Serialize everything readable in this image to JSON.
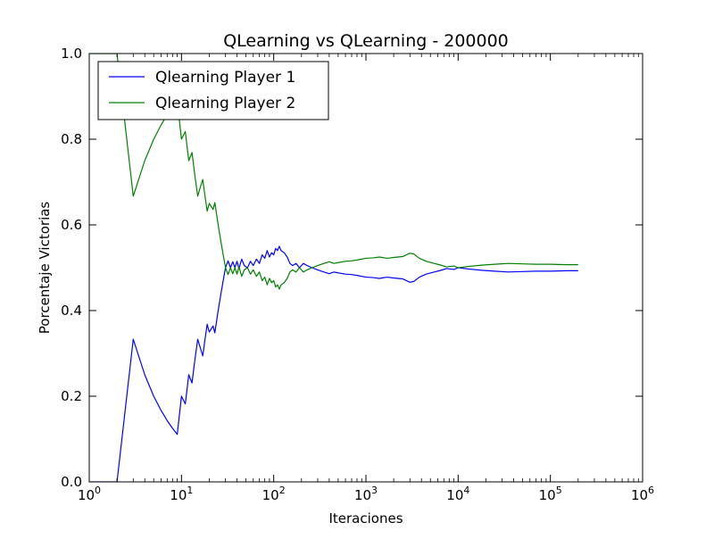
{
  "chart_data": {
    "type": "line",
    "title": "QLearning vs QLearning - 200000",
    "xlabel": "Iteraciones",
    "ylabel": "Porcentaje Victorias",
    "xscale": "log",
    "xlim": [
      1,
      1000000
    ],
    "ylim": [
      0,
      1.0
    ],
    "grid": false,
    "legend_position": "top-left",
    "x_ticks": [
      {
        "value": 1,
        "base": "10",
        "exp": "0"
      },
      {
        "value": 10,
        "base": "10",
        "exp": "1"
      },
      {
        "value": 100,
        "base": "10",
        "exp": "2"
      },
      {
        "value": 1000,
        "base": "10",
        "exp": "3"
      },
      {
        "value": 10000,
        "base": "10",
        "exp": "4"
      },
      {
        "value": 100000,
        "base": "10",
        "exp": "5"
      },
      {
        "value": 1000000,
        "base": "10",
        "exp": "6"
      }
    ],
    "y_ticks": [
      {
        "value": 0.0,
        "label": "0.0"
      },
      {
        "value": 0.2,
        "label": "0.2"
      },
      {
        "value": 0.4,
        "label": "0.4"
      },
      {
        "value": 0.6,
        "label": "0.6"
      },
      {
        "value": 0.8,
        "label": "0.8"
      },
      {
        "value": 1.0,
        "label": "1.0"
      }
    ],
    "series": [
      {
        "name": "Qlearning Player 1",
        "color": "#0000ff",
        "points": [
          [
            1,
            0.0
          ],
          [
            2,
            0.0
          ],
          [
            3,
            0.333
          ],
          [
            4,
            0.25
          ],
          [
            5,
            0.2
          ],
          [
            6,
            0.167
          ],
          [
            7,
            0.143
          ],
          [
            8,
            0.125
          ],
          [
            9,
            0.111
          ],
          [
            10,
            0.2
          ],
          [
            11,
            0.182
          ],
          [
            12,
            0.25
          ],
          [
            13,
            0.231
          ],
          [
            14,
            0.286
          ],
          [
            15,
            0.333
          ],
          [
            16,
            0.313
          ],
          [
            17,
            0.294
          ],
          [
            18,
            0.333
          ],
          [
            19,
            0.368
          ],
          [
            20,
            0.35
          ],
          [
            22,
            0.364
          ],
          [
            23,
            0.348
          ],
          [
            25,
            0.4
          ],
          [
            27,
            0.444
          ],
          [
            30,
            0.5
          ],
          [
            32,
            0.516
          ],
          [
            34,
            0.5
          ],
          [
            36,
            0.514
          ],
          [
            38,
            0.5
          ],
          [
            40,
            0.515
          ],
          [
            42,
            0.498
          ],
          [
            45,
            0.52
          ],
          [
            48,
            0.505
          ],
          [
            52,
            0.5
          ],
          [
            56,
            0.515
          ],
          [
            60,
            0.505
          ],
          [
            65,
            0.52
          ],
          [
            70,
            0.51
          ],
          [
            75,
            0.53
          ],
          [
            80,
            0.522
          ],
          [
            85,
            0.54
          ],
          [
            90,
            0.525
          ],
          [
            95,
            0.535
          ],
          [
            100,
            0.53
          ],
          [
            105,
            0.545
          ],
          [
            110,
            0.54
          ],
          [
            115,
            0.55
          ],
          [
            120,
            0.54
          ],
          [
            130,
            0.535
          ],
          [
            140,
            0.525
          ],
          [
            150,
            0.51
          ],
          [
            160,
            0.505
          ],
          [
            175,
            0.51
          ],
          [
            190,
            0.5
          ],
          [
            210,
            0.51
          ],
          [
            230,
            0.505
          ],
          [
            260,
            0.5
          ],
          [
            300,
            0.495
          ],
          [
            350,
            0.49
          ],
          [
            400,
            0.486
          ],
          [
            450,
            0.49
          ],
          [
            500,
            0.488
          ],
          [
            600,
            0.485
          ],
          [
            700,
            0.484
          ],
          [
            800,
            0.482
          ],
          [
            1000,
            0.478
          ],
          [
            1200,
            0.477
          ],
          [
            1400,
            0.475
          ],
          [
            1700,
            0.478
          ],
          [
            2000,
            0.476
          ],
          [
            2500,
            0.474
          ],
          [
            3000,
            0.466
          ],
          [
            3300,
            0.468
          ],
          [
            3800,
            0.478
          ],
          [
            4500,
            0.485
          ],
          [
            5500,
            0.49
          ],
          [
            6500,
            0.494
          ],
          [
            7500,
            0.498
          ],
          [
            9000,
            0.496
          ],
          [
            10000,
            0.5
          ],
          [
            13000,
            0.497
          ],
          [
            18000,
            0.494
          ],
          [
            25000,
            0.492
          ],
          [
            35000,
            0.49
          ],
          [
            50000,
            0.491
          ],
          [
            70000,
            0.492
          ],
          [
            100000,
            0.492
          ],
          [
            150000,
            0.493
          ],
          [
            200000,
            0.493
          ]
        ]
      },
      {
        "name": "Qlearning Player 2",
        "color": "#008000",
        "points": [
          [
            1,
            1.0
          ],
          [
            2,
            1.0
          ],
          [
            3,
            0.667
          ],
          [
            4,
            0.75
          ],
          [
            5,
            0.8
          ],
          [
            6,
            0.833
          ],
          [
            7,
            0.857
          ],
          [
            8,
            0.875
          ],
          [
            9,
            0.889
          ],
          [
            10,
            0.8
          ],
          [
            11,
            0.818
          ],
          [
            12,
            0.75
          ],
          [
            13,
            0.769
          ],
          [
            14,
            0.714
          ],
          [
            15,
            0.667
          ],
          [
            16,
            0.688
          ],
          [
            17,
            0.706
          ],
          [
            18,
            0.667
          ],
          [
            19,
            0.632
          ],
          [
            20,
            0.65
          ],
          [
            22,
            0.636
          ],
          [
            23,
            0.652
          ],
          [
            25,
            0.6
          ],
          [
            27,
            0.556
          ],
          [
            30,
            0.5
          ],
          [
            32,
            0.484
          ],
          [
            34,
            0.5
          ],
          [
            36,
            0.486
          ],
          [
            38,
            0.5
          ],
          [
            40,
            0.485
          ],
          [
            42,
            0.502
          ],
          [
            45,
            0.48
          ],
          [
            48,
            0.495
          ],
          [
            52,
            0.5
          ],
          [
            56,
            0.485
          ],
          [
            60,
            0.495
          ],
          [
            65,
            0.48
          ],
          [
            70,
            0.49
          ],
          [
            75,
            0.47
          ],
          [
            80,
            0.478
          ],
          [
            85,
            0.46
          ],
          [
            90,
            0.475
          ],
          [
            95,
            0.465
          ],
          [
            100,
            0.47
          ],
          [
            105,
            0.455
          ],
          [
            110,
            0.46
          ],
          [
            115,
            0.45
          ],
          [
            120,
            0.46
          ],
          [
            130,
            0.465
          ],
          [
            140,
            0.475
          ],
          [
            150,
            0.49
          ],
          [
            160,
            0.495
          ],
          [
            175,
            0.49
          ],
          [
            190,
            0.5
          ],
          [
            210,
            0.49
          ],
          [
            230,
            0.495
          ],
          [
            260,
            0.5
          ],
          [
            300,
            0.505
          ],
          [
            350,
            0.51
          ],
          [
            400,
            0.514
          ],
          [
            450,
            0.51
          ],
          [
            500,
            0.512
          ],
          [
            600,
            0.515
          ],
          [
            700,
            0.516
          ],
          [
            800,
            0.518
          ],
          [
            1000,
            0.522
          ],
          [
            1200,
            0.523
          ],
          [
            1400,
            0.525
          ],
          [
            1700,
            0.522
          ],
          [
            2000,
            0.524
          ],
          [
            2500,
            0.526
          ],
          [
            3000,
            0.534
          ],
          [
            3300,
            0.532
          ],
          [
            3800,
            0.522
          ],
          [
            4500,
            0.515
          ],
          [
            5500,
            0.51
          ],
          [
            6500,
            0.506
          ],
          [
            7500,
            0.502
          ],
          [
            9000,
            0.504
          ],
          [
            10000,
            0.5
          ],
          [
            13000,
            0.503
          ],
          [
            18000,
            0.506
          ],
          [
            25000,
            0.508
          ],
          [
            35000,
            0.51
          ],
          [
            50000,
            0.509
          ],
          [
            70000,
            0.508
          ],
          [
            100000,
            0.508
          ],
          [
            150000,
            0.507
          ],
          [
            200000,
            0.507
          ]
        ]
      }
    ]
  }
}
